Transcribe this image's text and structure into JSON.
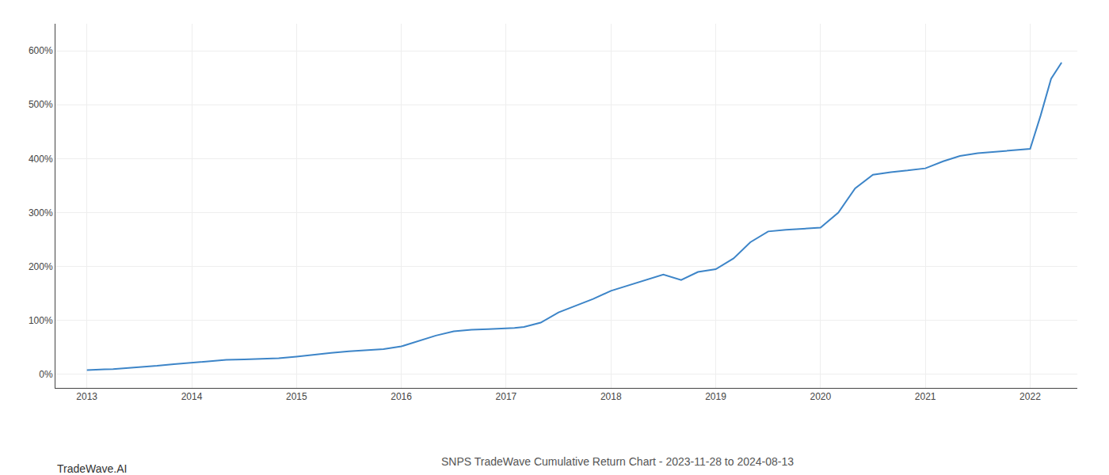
{
  "chart_data": {
    "type": "line",
    "title": "SNPS TradeWave Cumulative Return Chart - 2023-11-28 to 2024-08-13",
    "annotations": [
      {
        "text": "TradeWave.AI"
      }
    ],
    "color": "#3d85c8",
    "grid": true,
    "xlim": [
      2012.7,
      2022.45
    ],
    "ylim": [
      -25,
      650
    ],
    "xticks": [
      2013,
      2014,
      2015,
      2016,
      2017,
      2018,
      2019,
      2020,
      2021,
      2022
    ],
    "yticks": [
      {
        "value": 0,
        "label": "0%"
      },
      {
        "value": 100,
        "label": "100%"
      },
      {
        "value": 200,
        "label": "200%"
      },
      {
        "value": 300,
        "label": "300%"
      },
      {
        "value": 400,
        "label": "400%"
      },
      {
        "value": 500,
        "label": "500%"
      },
      {
        "value": 600,
        "label": "600%"
      }
    ],
    "x": [
      2013.0,
      2013.08,
      2013.17,
      2013.25,
      2013.33,
      2013.5,
      2013.67,
      2013.83,
      2014.0,
      2014.17,
      2014.33,
      2014.5,
      2014.67,
      2014.83,
      2015.0,
      2015.17,
      2015.33,
      2015.5,
      2015.67,
      2015.83,
      2016.0,
      2016.17,
      2016.33,
      2016.5,
      2016.67,
      2016.83,
      2017.0,
      2017.08,
      2017.17,
      2017.33,
      2017.5,
      2017.67,
      2017.83,
      2018.0,
      2018.17,
      2018.33,
      2018.5,
      2018.67,
      2018.83,
      2019.0,
      2019.17,
      2019.33,
      2019.5,
      2019.67,
      2019.83,
      2020.0,
      2020.17,
      2020.33,
      2020.5,
      2020.67,
      2020.83,
      2021.0,
      2021.17,
      2021.33,
      2021.5,
      2021.67,
      2021.83,
      2022.0,
      2022.1,
      2022.2,
      2022.3
    ],
    "values": [
      8,
      9,
      9.5,
      10,
      11,
      13,
      16,
      19,
      22,
      25,
      27,
      28,
      29,
      30,
      33,
      37,
      40,
      43,
      45,
      47,
      52,
      62,
      72,
      80,
      83,
      84,
      85,
      86,
      88,
      96,
      115,
      128,
      140,
      155,
      165,
      175,
      185,
      175,
      190,
      195,
      215,
      245,
      265,
      268,
      270,
      272,
      300,
      345,
      370,
      375,
      378,
      382,
      395,
      405,
      410,
      413,
      415,
      418,
      480,
      548,
      578
    ]
  }
}
